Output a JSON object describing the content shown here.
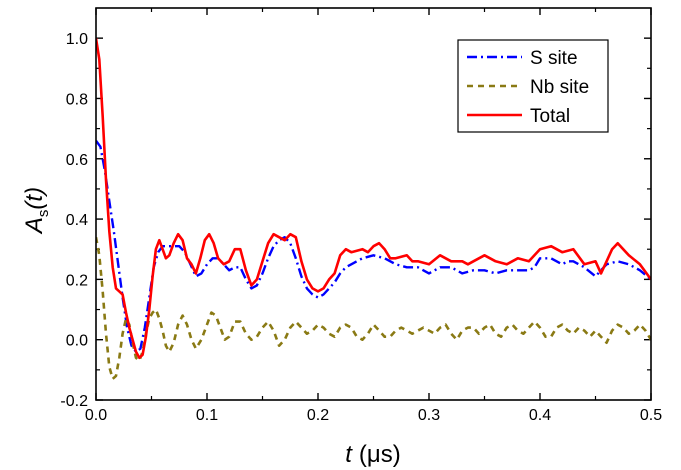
{
  "chart_data": {
    "type": "line",
    "xlabel": {
      "var": "t",
      "unit": "(μs)"
    },
    "ylabel": {
      "var": "A",
      "sub": "s",
      "arg": "(t)"
    },
    "xlim": [
      0,
      0.5
    ],
    "ylim": [
      -0.2,
      1.1
    ],
    "x_ticks": [
      "0.0",
      "0.1",
      "0.2",
      "0.3",
      "0.4",
      "0.5"
    ],
    "x_tick_values": [
      0,
      0.1,
      0.2,
      0.3,
      0.4,
      0.5
    ],
    "y_ticks": [
      "-0.2",
      "0.0",
      "0.2",
      "0.4",
      "0.6",
      "0.8",
      "1.0"
    ],
    "y_tick_values": [
      -0.2,
      0,
      0.2,
      0.4,
      0.6,
      0.8,
      1.0
    ],
    "grid": false,
    "legend_position": "top-right",
    "series": [
      {
        "name": "S site",
        "color": "#0000ff",
        "dash": "dashdot",
        "points": [
          [
            0,
            0.66
          ],
          [
            0.004,
            0.64
          ],
          [
            0.008,
            0.56
          ],
          [
            0.012,
            0.46
          ],
          [
            0.016,
            0.36
          ],
          [
            0.02,
            0.25
          ],
          [
            0.024,
            0.14
          ],
          [
            0.028,
            0.04
          ],
          [
            0.032,
            -0.02
          ],
          [
            0.036,
            -0.04
          ],
          [
            0.04,
            -0.03
          ],
          [
            0.044,
            0.04
          ],
          [
            0.048,
            0.14
          ],
          [
            0.052,
            0.24
          ],
          [
            0.056,
            0.29
          ],
          [
            0.06,
            0.31
          ],
          [
            0.065,
            0.31
          ],
          [
            0.07,
            0.31
          ],
          [
            0.075,
            0.31
          ],
          [
            0.08,
            0.29
          ],
          [
            0.085,
            0.25
          ],
          [
            0.09,
            0.21
          ],
          [
            0.095,
            0.22
          ],
          [
            0.1,
            0.25
          ],
          [
            0.105,
            0.27
          ],
          [
            0.11,
            0.27
          ],
          [
            0.115,
            0.25
          ],
          [
            0.12,
            0.23
          ],
          [
            0.125,
            0.24
          ],
          [
            0.13,
            0.24
          ],
          [
            0.135,
            0.2
          ],
          [
            0.14,
            0.17
          ],
          [
            0.145,
            0.18
          ],
          [
            0.15,
            0.22
          ],
          [
            0.155,
            0.27
          ],
          [
            0.16,
            0.31
          ],
          [
            0.165,
            0.33
          ],
          [
            0.17,
            0.34
          ],
          [
            0.175,
            0.32
          ],
          [
            0.18,
            0.27
          ],
          [
            0.185,
            0.21
          ],
          [
            0.19,
            0.17
          ],
          [
            0.195,
            0.15
          ],
          [
            0.2,
            0.14
          ],
          [
            0.205,
            0.15
          ],
          [
            0.21,
            0.17
          ],
          [
            0.215,
            0.19
          ],
          [
            0.22,
            0.22
          ],
          [
            0.225,
            0.24
          ],
          [
            0.23,
            0.25
          ],
          [
            0.24,
            0.27
          ],
          [
            0.25,
            0.28
          ],
          [
            0.26,
            0.27
          ],
          [
            0.27,
            0.25
          ],
          [
            0.28,
            0.24
          ],
          [
            0.29,
            0.24
          ],
          [
            0.3,
            0.22
          ],
          [
            0.31,
            0.24
          ],
          [
            0.32,
            0.24
          ],
          [
            0.33,
            0.22
          ],
          [
            0.34,
            0.23
          ],
          [
            0.35,
            0.23
          ],
          [
            0.36,
            0.22
          ],
          [
            0.37,
            0.23
          ],
          [
            0.38,
            0.23
          ],
          [
            0.39,
            0.23
          ],
          [
            0.395,
            0.24
          ],
          [
            0.4,
            0.27
          ],
          [
            0.41,
            0.27
          ],
          [
            0.42,
            0.25
          ],
          [
            0.425,
            0.26
          ],
          [
            0.43,
            0.26
          ],
          [
            0.44,
            0.24
          ],
          [
            0.45,
            0.21
          ],
          [
            0.455,
            0.23
          ],
          [
            0.46,
            0.25
          ],
          [
            0.47,
            0.26
          ],
          [
            0.48,
            0.25
          ],
          [
            0.49,
            0.23
          ],
          [
            0.5,
            0.2
          ]
        ]
      },
      {
        "name": "Nb site",
        "color": "#8a7a14",
        "dash": "dash",
        "points": [
          [
            0,
            0.34
          ],
          [
            0.003,
            0.28
          ],
          [
            0.006,
            0.16
          ],
          [
            0.009,
            0.02
          ],
          [
            0.012,
            -0.09
          ],
          [
            0.015,
            -0.13
          ],
          [
            0.018,
            -0.12
          ],
          [
            0.021,
            -0.06
          ],
          [
            0.024,
            0.02
          ],
          [
            0.027,
            0.07
          ],
          [
            0.03,
            0.05
          ],
          [
            0.033,
            -0.01
          ],
          [
            0.036,
            -0.06
          ],
          [
            0.039,
            -0.07
          ],
          [
            0.042,
            -0.04
          ],
          [
            0.045,
            0.02
          ],
          [
            0.048,
            0.07
          ],
          [
            0.051,
            0.09
          ],
          [
            0.054,
            0.1
          ],
          [
            0.057,
            0.07
          ],
          [
            0.06,
            0.03
          ],
          [
            0.063,
            -0.02
          ],
          [
            0.066,
            -0.04
          ],
          [
            0.07,
            -0.01
          ],
          [
            0.074,
            0.05
          ],
          [
            0.078,
            0.08
          ],
          [
            0.082,
            0.05
          ],
          [
            0.086,
            0.0
          ],
          [
            0.09,
            -0.03
          ],
          [
            0.095,
            0.0
          ],
          [
            0.1,
            0.05
          ],
          [
            0.104,
            0.09
          ],
          [
            0.108,
            0.08
          ],
          [
            0.112,
            0.04
          ],
          [
            0.116,
            0.0
          ],
          [
            0.12,
            0.01
          ],
          [
            0.125,
            0.06
          ],
          [
            0.13,
            0.06
          ],
          [
            0.135,
            0.02
          ],
          [
            0.14,
            0.0
          ],
          [
            0.145,
            0.01
          ],
          [
            0.15,
            0.04
          ],
          [
            0.155,
            0.06
          ],
          [
            0.16,
            0.03
          ],
          [
            0.165,
            -0.02
          ],
          [
            0.17,
            0.0
          ],
          [
            0.175,
            0.04
          ],
          [
            0.18,
            0.06
          ],
          [
            0.185,
            0.04
          ],
          [
            0.19,
            0.02
          ],
          [
            0.195,
            0.03
          ],
          [
            0.2,
            0.05
          ],
          [
            0.205,
            0.04
          ],
          [
            0.21,
            0.02
          ],
          [
            0.215,
            0.01
          ],
          [
            0.22,
            0.04
          ],
          [
            0.225,
            0.05
          ],
          [
            0.23,
            0.04
          ],
          [
            0.235,
            0.01
          ],
          [
            0.24,
            0.0
          ],
          [
            0.245,
            0.02
          ],
          [
            0.25,
            0.05
          ],
          [
            0.255,
            0.03
          ],
          [
            0.26,
            0.01
          ],
          [
            0.265,
            0.01
          ],
          [
            0.27,
            0.03
          ],
          [
            0.275,
            0.04
          ],
          [
            0.28,
            0.03
          ],
          [
            0.285,
            0.02
          ],
          [
            0.29,
            0.03
          ],
          [
            0.295,
            0.04
          ],
          [
            0.3,
            0.03
          ],
          [
            0.305,
            0.02
          ],
          [
            0.31,
            0.04
          ],
          [
            0.315,
            0.05
          ],
          [
            0.32,
            0.02
          ],
          [
            0.325,
            0.0
          ],
          [
            0.33,
            0.03
          ],
          [
            0.335,
            0.04
          ],
          [
            0.34,
            0.04
          ],
          [
            0.345,
            0.02
          ],
          [
            0.35,
            0.04
          ],
          [
            0.355,
            0.05
          ],
          [
            0.36,
            0.02
          ],
          [
            0.365,
            0.01
          ],
          [
            0.37,
            0.04
          ],
          [
            0.375,
            0.05
          ],
          [
            0.38,
            0.03
          ],
          [
            0.385,
            0.02
          ],
          [
            0.39,
            0.04
          ],
          [
            0.395,
            0.06
          ],
          [
            0.4,
            0.04
          ],
          [
            0.405,
            0.01
          ],
          [
            0.41,
            0.01
          ],
          [
            0.415,
            0.04
          ],
          [
            0.42,
            0.05
          ],
          [
            0.425,
            0.03
          ],
          [
            0.43,
            0.02
          ],
          [
            0.435,
            0.04
          ],
          [
            0.44,
            0.03
          ],
          [
            0.445,
            0.01
          ],
          [
            0.45,
            0.03
          ],
          [
            0.455,
            0.01
          ],
          [
            0.46,
            -0.01
          ],
          [
            0.465,
            0.03
          ],
          [
            0.47,
            0.05
          ],
          [
            0.475,
            0.04
          ],
          [
            0.48,
            0.02
          ],
          [
            0.485,
            0.03
          ],
          [
            0.49,
            0.05
          ],
          [
            0.495,
            0.03
          ],
          [
            0.5,
            0.0
          ]
        ]
      },
      {
        "name": "Total",
        "color": "#ff0000",
        "dash": "solid",
        "points": [
          [
            0,
            1.0
          ],
          [
            0.003,
            0.93
          ],
          [
            0.006,
            0.74
          ],
          [
            0.009,
            0.53
          ],
          [
            0.012,
            0.36
          ],
          [
            0.015,
            0.24
          ],
          [
            0.018,
            0.17
          ],
          [
            0.021,
            0.16
          ],
          [
            0.024,
            0.15
          ],
          [
            0.027,
            0.09
          ],
          [
            0.03,
            0.04
          ],
          [
            0.033,
            0.0
          ],
          [
            0.036,
            -0.04
          ],
          [
            0.039,
            -0.06
          ],
          [
            0.042,
            -0.05
          ],
          [
            0.045,
            0.01
          ],
          [
            0.048,
            0.1
          ],
          [
            0.051,
            0.21
          ],
          [
            0.054,
            0.3
          ],
          [
            0.057,
            0.33
          ],
          [
            0.06,
            0.3
          ],
          [
            0.063,
            0.27
          ],
          [
            0.066,
            0.28
          ],
          [
            0.07,
            0.32
          ],
          [
            0.074,
            0.35
          ],
          [
            0.078,
            0.33
          ],
          [
            0.082,
            0.27
          ],
          [
            0.086,
            0.25
          ],
          [
            0.09,
            0.22
          ],
          [
            0.094,
            0.27
          ],
          [
            0.098,
            0.33
          ],
          [
            0.102,
            0.35
          ],
          [
            0.106,
            0.32
          ],
          [
            0.11,
            0.27
          ],
          [
            0.115,
            0.25
          ],
          [
            0.12,
            0.26
          ],
          [
            0.125,
            0.3
          ],
          [
            0.13,
            0.3
          ],
          [
            0.135,
            0.23
          ],
          [
            0.14,
            0.18
          ],
          [
            0.145,
            0.2
          ],
          [
            0.15,
            0.26
          ],
          [
            0.155,
            0.32
          ],
          [
            0.16,
            0.35
          ],
          [
            0.165,
            0.34
          ],
          [
            0.17,
            0.33
          ],
          [
            0.175,
            0.35
          ],
          [
            0.18,
            0.34
          ],
          [
            0.185,
            0.26
          ],
          [
            0.19,
            0.2
          ],
          [
            0.195,
            0.17
          ],
          [
            0.2,
            0.16
          ],
          [
            0.205,
            0.17
          ],
          [
            0.21,
            0.2
          ],
          [
            0.215,
            0.22
          ],
          [
            0.22,
            0.28
          ],
          [
            0.225,
            0.3
          ],
          [
            0.23,
            0.29
          ],
          [
            0.24,
            0.3
          ],
          [
            0.245,
            0.29
          ],
          [
            0.25,
            0.31
          ],
          [
            0.255,
            0.32
          ],
          [
            0.26,
            0.3
          ],
          [
            0.265,
            0.27
          ],
          [
            0.27,
            0.27
          ],
          [
            0.28,
            0.28
          ],
          [
            0.285,
            0.26
          ],
          [
            0.29,
            0.26
          ],
          [
            0.3,
            0.25
          ],
          [
            0.31,
            0.28
          ],
          [
            0.32,
            0.26
          ],
          [
            0.33,
            0.26
          ],
          [
            0.335,
            0.25
          ],
          [
            0.34,
            0.26
          ],
          [
            0.35,
            0.28
          ],
          [
            0.36,
            0.26
          ],
          [
            0.37,
            0.25
          ],
          [
            0.38,
            0.27
          ],
          [
            0.39,
            0.26
          ],
          [
            0.4,
            0.3
          ],
          [
            0.41,
            0.31
          ],
          [
            0.42,
            0.29
          ],
          [
            0.43,
            0.3
          ],
          [
            0.44,
            0.25
          ],
          [
            0.45,
            0.26
          ],
          [
            0.455,
            0.22
          ],
          [
            0.46,
            0.26
          ],
          [
            0.465,
            0.3
          ],
          [
            0.47,
            0.32
          ],
          [
            0.48,
            0.28
          ],
          [
            0.49,
            0.25
          ],
          [
            0.5,
            0.2
          ]
        ]
      }
    ]
  }
}
